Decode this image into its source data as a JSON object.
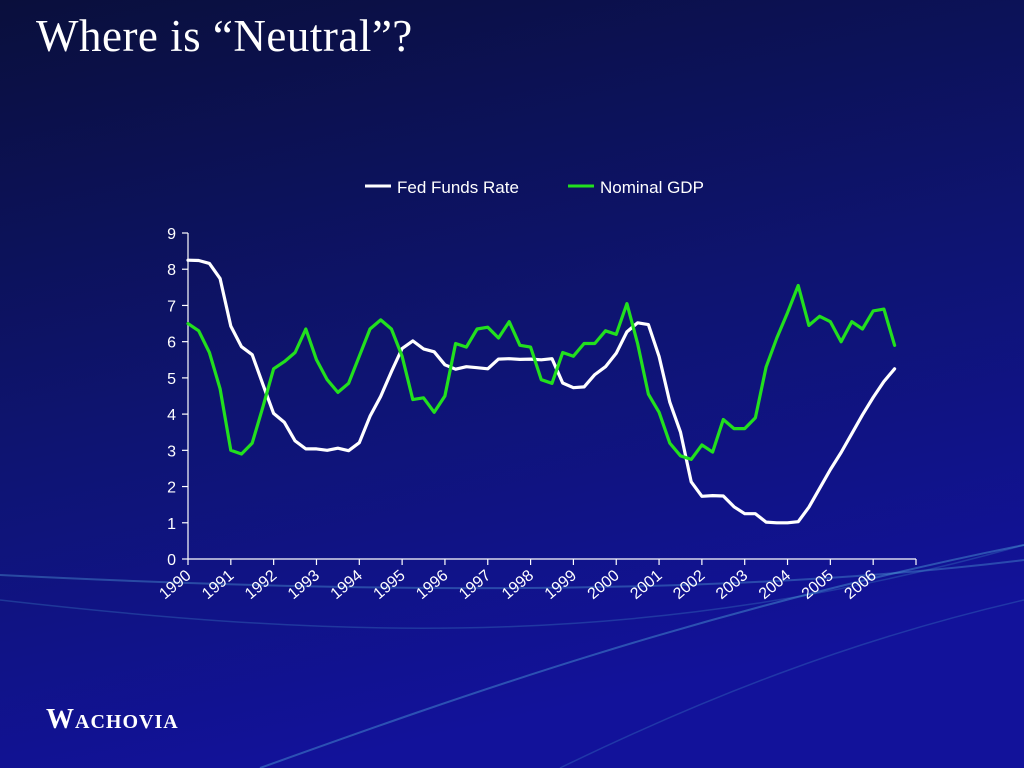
{
  "slide": {
    "title": "Where is “Neutral”?",
    "logo": {
      "first": "W",
      "rest": "ACHOVIA",
      "name": "WACHOVIA"
    }
  },
  "colors": {
    "background_top": "#0a0f3c",
    "background_bottom": "#10108a",
    "fed_funds": "#ffffff",
    "nominal_gdp": "#22e01e",
    "axis": "#ffffff"
  },
  "chart_data": {
    "type": "line",
    "title": "",
    "xlabel": "",
    "ylabel": "",
    "ylim": [
      0,
      9
    ],
    "yticks": [
      "0",
      "1",
      "2",
      "3",
      "4",
      "5",
      "6",
      "7",
      "8",
      "9"
    ],
    "xlim": [
      1990,
      2007
    ],
    "xticks": [
      "1990",
      "1991",
      "1992",
      "1993",
      "1994",
      "1995",
      "1996",
      "1997",
      "1998",
      "1999",
      "2000",
      "2001",
      "2002",
      "2003",
      "2004",
      "2005",
      "2006"
    ],
    "legend_position": "top",
    "grid": false,
    "series": [
      {
        "name": "Fed Funds Rate",
        "color": "#ffffff",
        "x": [
          1990.0,
          1990.25,
          1990.5,
          1990.75,
          1991.0,
          1991.25,
          1991.5,
          1991.75,
          1992.0,
          1992.25,
          1992.5,
          1992.75,
          1993.0,
          1993.25,
          1993.5,
          1993.75,
          1994.0,
          1994.25,
          1994.5,
          1994.75,
          1995.0,
          1995.25,
          1995.5,
          1995.75,
          1996.0,
          1996.25,
          1996.5,
          1996.75,
          1997.0,
          1997.25,
          1997.5,
          1997.75,
          1998.0,
          1998.25,
          1998.5,
          1998.75,
          1999.0,
          1999.25,
          1999.5,
          1999.75,
          2000.0,
          2000.25,
          2000.5,
          2000.75,
          2001.0,
          2001.25,
          2001.5,
          2001.75,
          2002.0,
          2002.25,
          2002.5,
          2002.75,
          2003.0,
          2003.25,
          2003.5,
          2003.75,
          2004.0,
          2004.25,
          2004.5,
          2004.75,
          2005.0,
          2005.25,
          2005.5,
          2005.75,
          2006.0,
          2006.25,
          2006.5
        ],
        "values": [
          8.25,
          8.24,
          8.16,
          7.74,
          6.43,
          5.86,
          5.64,
          4.82,
          4.02,
          3.77,
          3.26,
          3.04,
          3.04,
          3.0,
          3.06,
          2.99,
          3.21,
          3.94,
          4.49,
          5.17,
          5.81,
          6.02,
          5.8,
          5.72,
          5.36,
          5.24,
          5.31,
          5.28,
          5.25,
          5.52,
          5.53,
          5.51,
          5.52,
          5.5,
          5.53,
          4.86,
          4.73,
          4.75,
          5.09,
          5.31,
          5.68,
          6.27,
          6.52,
          6.47,
          5.59,
          4.33,
          3.5,
          2.13,
          1.73,
          1.75,
          1.74,
          1.44,
          1.25,
          1.25,
          1.02,
          1.0,
          1.0,
          1.03,
          1.43,
          1.95,
          2.47,
          2.94,
          3.46,
          3.98,
          4.46,
          4.9,
          5.25
        ]
      },
      {
        "name": "Nominal GDP",
        "color": "#22e01e",
        "x": [
          1990.0,
          1990.25,
          1990.5,
          1990.75,
          1991.0,
          1991.25,
          1991.5,
          1991.75,
          1992.0,
          1992.25,
          1992.5,
          1992.75,
          1993.0,
          1993.25,
          1993.5,
          1993.75,
          1994.0,
          1994.25,
          1994.5,
          1994.75,
          1995.0,
          1995.25,
          1995.5,
          1995.75,
          1996.0,
          1996.25,
          1996.5,
          1996.75,
          1997.0,
          1997.25,
          1997.5,
          1997.75,
          1998.0,
          1998.25,
          1998.5,
          1998.75,
          1999.0,
          1999.25,
          1999.5,
          1999.75,
          2000.0,
          2000.25,
          2000.5,
          2000.75,
          2001.0,
          2001.25,
          2001.5,
          2001.75,
          2002.0,
          2002.25,
          2002.5,
          2002.75,
          2003.0,
          2003.25,
          2003.5,
          2003.75,
          2004.0,
          2004.25,
          2004.5,
          2004.75,
          2005.0,
          2005.25,
          2005.5,
          2005.75,
          2006.0,
          2006.25,
          2006.5
        ],
        "values": [
          6.5,
          6.3,
          5.7,
          4.7,
          3.0,
          2.9,
          3.2,
          4.2,
          5.25,
          5.45,
          5.7,
          6.35,
          5.5,
          4.95,
          4.6,
          4.85,
          5.6,
          6.35,
          6.6,
          6.35,
          5.6,
          4.4,
          4.45,
          4.05,
          4.5,
          5.95,
          5.85,
          6.35,
          6.4,
          6.1,
          6.55,
          5.9,
          5.85,
          4.95,
          4.85,
          5.7,
          5.6,
          5.95,
          5.95,
          6.3,
          6.2,
          7.05,
          5.95,
          4.55,
          4.05,
          3.2,
          2.85,
          2.75,
          3.15,
          2.95,
          3.85,
          3.6,
          3.6,
          3.9,
          5.3,
          6.1,
          6.8,
          7.55,
          6.45,
          6.7,
          6.55,
          6.0,
          6.55,
          6.35,
          6.85,
          6.9,
          5.9
        ]
      }
    ]
  }
}
